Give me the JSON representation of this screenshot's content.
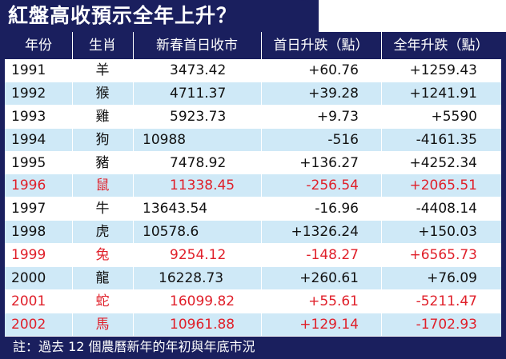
{
  "title": "紅盤高收預示全年上升？",
  "headers": [
    "年份",
    "生肖",
    "新春首日收市",
    "首日升跌（點）",
    "全年升跌（點）"
  ],
  "rows": [
    {
      "year": "1991",
      "zodiac": "羊",
      "open": "3473.42",
      "first": "+60.76",
      "full": "+1259.43",
      "highlight": false
    },
    {
      "year": "1992",
      "zodiac": "猴",
      "open": "4711.37",
      "first": "+39.28",
      "full": "+1241.91",
      "highlight": false
    },
    {
      "year": "1993",
      "zodiac": "雞",
      "open": "5923.73",
      "first": "+9.73",
      "full": "+5590",
      "highlight": false
    },
    {
      "year": "1994",
      "zodiac": "狗",
      "open": "10988",
      "first": "-516",
      "full": "-4161.35",
      "highlight": false
    },
    {
      "year": "1995",
      "zodiac": "豬",
      "open": "7478.92",
      "first": "+136.27",
      "full": "+4252.34",
      "highlight": false
    },
    {
      "year": "1996",
      "zodiac": "鼠",
      "open": "11338.45",
      "first": "-256.54",
      "full": "+2065.51",
      "highlight": true
    },
    {
      "year": "1997",
      "zodiac": "牛",
      "open": "13643.54",
      "first": "-16.96",
      "full": "-4408.14",
      "highlight": false
    },
    {
      "year": "1998",
      "zodiac": "虎",
      "open": "10578.6",
      "first": "+1326.24",
      "full": "+150.03",
      "highlight": false
    },
    {
      "year": "1999",
      "zodiac": "兔",
      "open": "9254.12",
      "first": "-148.27",
      "full": "+6565.73",
      "highlight": true
    },
    {
      "year": "2000",
      "zodiac": "龍",
      "open": "16228.73",
      "first": "+260.61",
      "full": "+76.09",
      "highlight": false
    },
    {
      "year": "2001",
      "zodiac": "蛇",
      "open": "16099.82",
      "first": "+55.61",
      "full": "-5211.47",
      "highlight": true
    },
    {
      "year": "2002",
      "zodiac": "馬",
      "open": "10961.88",
      "first": "+129.14",
      "full": "-1702.93",
      "highlight": true
    }
  ],
  "footer": "註：過去 12 個農曆新年的年初與年底市況",
  "colors": {
    "navy": "#1a1f5e",
    "stripe": "#cfe9f7",
    "red": "#e0202a"
  }
}
